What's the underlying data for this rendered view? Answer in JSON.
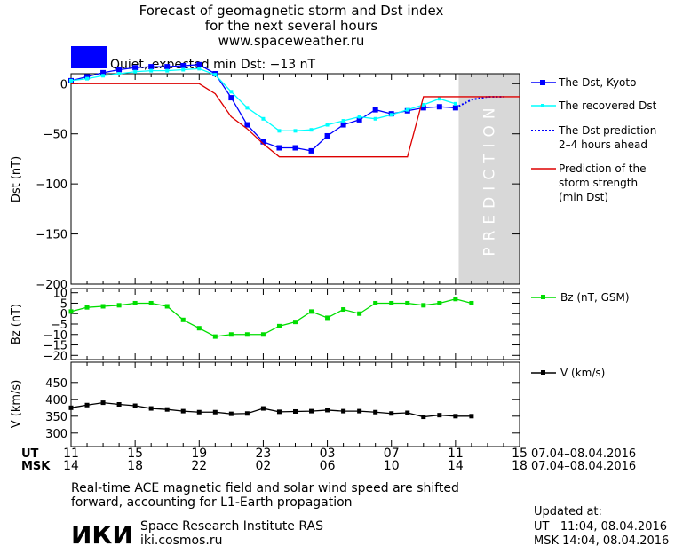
{
  "header": {
    "title_line1": "Forecast of geomagnetic storm and Dst index",
    "title_line2": "for the next several hours",
    "url": "www.spaceweather.ru"
  },
  "status": {
    "color": "#0000ff",
    "text": "Quiet, expected min Dst: −13 nT"
  },
  "legend": {
    "dst_kyoto": "The Dst, Kyoto",
    "dst_recovered": "The recovered Dst",
    "prediction_line1": "The Dst prediction",
    "prediction_line2": "2–4 hours ahead",
    "strength_line1": "Prediction of the",
    "strength_line2": "storm strength",
    "strength_line3": "(min Dst)",
    "bz": "Bz (nT, GSM)",
    "v": "V (km/s)"
  },
  "axes": {
    "ut_label": "UT",
    "msk_label": "MSK",
    "ut_ticks": [
      "11",
      "15",
      "19",
      "23",
      "03",
      "07",
      "11",
      "15"
    ],
    "msk_ticks": [
      "14",
      "18",
      "22",
      "02",
      "06",
      "10",
      "14",
      "18"
    ],
    "ut_range": "07.04–08.04.2016",
    "msk_range": "07.04–08.04.2016",
    "prediction_text": "PREDICTION"
  },
  "footer": {
    "note_line1": "Real-time ACE magnetic field and solar wind speed are shifted",
    "note_line2": "forward, accounting for L1-Earth propagation",
    "logo": "ИКИ",
    "institute": "Space Research Institute RAS",
    "site": "iki.cosmos.ru",
    "updated_label": "Updated at:",
    "updated_ut": "UT   11:04, 08.04.2016",
    "updated_msk": "MSK 14:04, 08.04.2016"
  },
  "chart_data": [
    {
      "type": "line",
      "ylabel": "Dst (nT)",
      "ylim": [
        -200,
        10
      ],
      "yticks": [
        0,
        -50,
        -100,
        -150,
        -200
      ],
      "x_unit": "hours from 11 UT 07.04.2016",
      "xlim": [
        0,
        28
      ],
      "prediction_region": [
        24.2,
        28
      ],
      "colors": {
        "kyoto": "#0000ff",
        "recovered": "#00ffff",
        "prediction": "#0000ff",
        "strength": "#dd0000",
        "prediction_band": "#d8d8d8"
      },
      "series": [
        {
          "name": "The Dst, Kyoto",
          "x": [
            0,
            1,
            2,
            3,
            4,
            5,
            6,
            7,
            8,
            9,
            10,
            11,
            12,
            13,
            14,
            15,
            16,
            17,
            18,
            19,
            20,
            21,
            22,
            23,
            24
          ],
          "y": [
            3,
            7,
            11,
            14,
            16,
            17,
            17,
            18,
            19,
            10,
            -14,
            -41,
            -58,
            -64,
            -64,
            -67,
            -52,
            -41,
            -36,
            -26,
            -30,
            -27,
            -24,
            -23,
            -24
          ]
        },
        {
          "name": "The recovered Dst",
          "x": [
            0,
            1,
            2,
            3,
            4,
            5,
            6,
            7,
            8,
            9,
            10,
            11,
            12,
            13,
            14,
            15,
            16,
            17,
            18,
            19,
            20,
            21,
            22,
            23,
            24
          ],
          "y": [
            3,
            5,
            8,
            10,
            12,
            13,
            13,
            14,
            15,
            9,
            -8,
            -24,
            -35,
            -47,
            -47,
            -46,
            -41,
            -37,
            -33,
            -35,
            -31,
            -26,
            -21,
            -15,
            -20
          ]
        },
        {
          "name": "The Dst prediction 2–4 hours ahead",
          "x": [
            24,
            25,
            26,
            27
          ],
          "y": [
            -24,
            -16,
            -13,
            -13
          ]
        },
        {
          "name": "Prediction of the storm strength (min Dst)",
          "x": [
            0,
            8,
            9,
            10,
            11,
            12,
            13,
            14,
            15,
            16,
            17,
            18,
            19,
            20,
            21,
            22,
            23,
            24,
            25,
            26,
            27,
            28
          ],
          "y": [
            0,
            0,
            -10,
            -33,
            -45,
            -60,
            -73,
            -73,
            -73,
            -73,
            -73,
            -73,
            -73,
            -73,
            -73,
            -13,
            -13,
            -13,
            -13,
            -13,
            -13,
            -13
          ]
        }
      ]
    },
    {
      "type": "line",
      "ylabel": "Bz (nT)",
      "ylim": [
        -22,
        12
      ],
      "yticks": [
        10,
        5,
        0,
        -5,
        -10,
        -15,
        -20
      ],
      "color": "#00dd00",
      "series": [
        {
          "name": "Bz (nT, GSM)",
          "x": [
            0,
            1,
            2,
            3,
            4,
            5,
            6,
            7,
            8,
            9,
            10,
            11,
            12,
            13,
            14,
            15,
            16,
            17,
            18,
            19,
            20,
            21,
            22,
            23,
            24,
            25
          ],
          "y": [
            1,
            3,
            3.5,
            4,
            5,
            5,
            3.5,
            -3,
            -7,
            -11,
            -10,
            -10,
            -10,
            -6,
            -4,
            1,
            -2,
            2,
            0,
            5,
            5,
            5,
            4,
            5,
            7,
            5
          ]
        }
      ]
    },
    {
      "type": "line",
      "ylabel": "V (km/s)",
      "ylim": [
        260,
        510
      ],
      "yticks": [
        450,
        400,
        350,
        300
      ],
      "color": "#000000",
      "series": [
        {
          "name": "V (km/s)",
          "x": [
            0,
            1,
            2,
            3,
            4,
            5,
            6,
            7,
            8,
            9,
            10,
            11,
            12,
            13,
            14,
            15,
            16,
            17,
            18,
            19,
            20,
            21,
            22,
            23,
            24,
            25
          ],
          "y": [
            375,
            383,
            390,
            385,
            381,
            373,
            370,
            365,
            362,
            362,
            357,
            358,
            373,
            363,
            364,
            365,
            368,
            365,
            365,
            362,
            358,
            360,
            348,
            353,
            350,
            350
          ]
        }
      ]
    }
  ]
}
